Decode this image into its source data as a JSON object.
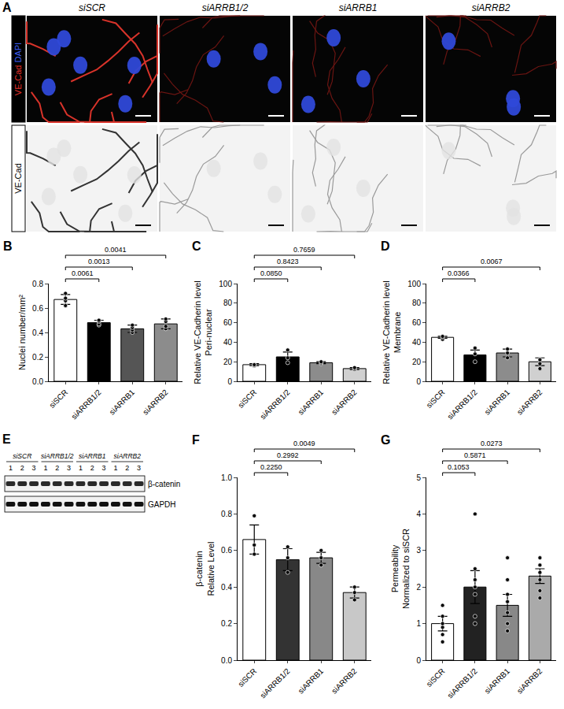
{
  "panel_A": {
    "letter": "A",
    "columns": [
      "siSCR",
      "siARRB1/2",
      "siARRB1",
      "siARRB2"
    ],
    "rows": [
      {
        "label": [
          {
            "text": "VE-Cad",
            "color": "#e8322b"
          },
          {
            "text": "DAPI",
            "color": "#3d5ef0"
          }
        ]
      },
      {
        "label": [
          {
            "text": "VE-Cad",
            "color": "#000000"
          }
        ]
      }
    ]
  },
  "panel_E": {
    "letter": "E",
    "groups": [
      "siSCR",
      "siARRB1/2",
      "siARRB1",
      "siARRB2"
    ],
    "lanes": [
      "1",
      "2",
      "3"
    ],
    "blots": [
      "β-catenin",
      "GAPDH"
    ]
  },
  "chart_data": [
    {
      "panel": "B",
      "type": "bar",
      "y_label": [
        "Nuclei number/mm²"
      ],
      "categories": [
        "siSCR",
        "siARRB1/2",
        "siARRB1",
        "siARRB2"
      ],
      "values": [
        0.67,
        0.48,
        0.43,
        0.47
      ],
      "errors": [
        0.04,
        0.02,
        0.03,
        0.04
      ],
      "points": [
        [
          0.62,
          0.66,
          0.68,
          0.72
        ],
        [
          0.46,
          0.47,
          0.49,
          0.5
        ],
        [
          0.4,
          0.42,
          0.44,
          0.46
        ],
        [
          0.43,
          0.45,
          0.49,
          0.51
        ]
      ],
      "colors": [
        "#ffffff",
        "#000000",
        "#555555",
        "#8c8c8c"
      ],
      "ylim": [
        0,
        0.8
      ],
      "yticks": [
        {
          "value": 0,
          "label": "0.0"
        },
        0.2,
        0.4,
        0.6,
        0.8
      ],
      "comparisons": [
        {
          "from": "siSCR",
          "to": "siARRB1/2",
          "p": "0.0061"
        },
        {
          "from": "siSCR",
          "to": "siARRB1",
          "p": "0.0013"
        },
        {
          "from": "siSCR",
          "to": "siARRB2",
          "p": "0.0041"
        }
      ],
      "grid": false
    },
    {
      "panel": "C",
      "type": "bar",
      "y_label": [
        "Relative VE-Cadherin level",
        "Peri-nuclear"
      ],
      "categories": [
        "siSCR",
        "siARRB1/2",
        "siARRB1",
        "siARRB2"
      ],
      "values": [
        17,
        25,
        19,
        13
      ],
      "errors": [
        1,
        5,
        1,
        1
      ],
      "points": [
        [
          16,
          17,
          17
        ],
        [
          19,
          24,
          32
        ],
        [
          18,
          19,
          20
        ],
        [
          12,
          13,
          14
        ]
      ],
      "colors": [
        "#ffffff",
        "#000000",
        "#8c8c8c",
        "#d0d0d0"
      ],
      "ylim": [
        0,
        100
      ],
      "yticks": [
        0,
        20,
        40,
        60,
        80,
        100
      ],
      "comparisons": [
        {
          "from": "siSCR",
          "to": "siARRB1/2",
          "p": "0.0850"
        },
        {
          "from": "siSCR",
          "to": "siARRB1",
          "p": "0.8423"
        },
        {
          "from": "siSCR",
          "to": "siARRB2",
          "p": "0.7659"
        }
      ],
      "grid": false
    },
    {
      "panel": "D",
      "type": "bar",
      "y_label": [
        "Relative VE-Cadherin level",
        "Membrane"
      ],
      "categories": [
        "siSCR",
        "siARRB1/2",
        "siARRB1",
        "siARRB2"
      ],
      "values": [
        45,
        27,
        29,
        20
      ],
      "errors": [
        1,
        5,
        4,
        4
      ],
      "points": [
        [
          43,
          45,
          46
        ],
        [
          20,
          28,
          34
        ],
        [
          24,
          29,
          33
        ],
        [
          13,
          18,
          22
        ]
      ],
      "colors": [
        "#ffffff",
        "#000000",
        "#8c8c8c",
        "#d0d0d0"
      ],
      "ylim": [
        0,
        100
      ],
      "yticks": [
        0,
        20,
        40,
        60,
        80,
        100
      ],
      "comparisons": [
        {
          "from": "siSCR",
          "to": "siARRB1/2",
          "p": "0.0366"
        },
        {
          "from": "siSCR",
          "to": "siARRB2",
          "p": "0.0067"
        }
      ],
      "grid": false
    },
    {
      "panel": "F",
      "type": "bar",
      "y_label": [
        "β-catenin",
        "Relative Level"
      ],
      "categories": [
        "siSCR",
        "siARRB1/2",
        "siARRB1",
        "siARRB2"
      ],
      "values": [
        0.66,
        0.55,
        0.56,
        0.37
      ],
      "errors": [
        0.08,
        0.06,
        0.03,
        0.03
      ],
      "points": [
        [
          0.58,
          0.63,
          0.79
        ],
        [
          0.48,
          0.56,
          0.62
        ],
        [
          0.52,
          0.56,
          0.6
        ],
        [
          0.33,
          0.37,
          0.4
        ]
      ],
      "colors": [
        "#ffffff",
        "#333333",
        "#888888",
        "#c8c8c8"
      ],
      "ylim": [
        0,
        1
      ],
      "yticks": [
        {
          "value": 0,
          "label": "0.0"
        },
        0.2,
        0.4,
        0.6,
        0.8,
        {
          "value": 1,
          "label": "1.0"
        }
      ],
      "comparisons": [
        {
          "from": "siSCR",
          "to": "siARRB1/2",
          "p": "0.2250"
        },
        {
          "from": "siSCR",
          "to": "siARRB1",
          "p": "0.2992"
        },
        {
          "from": "siSCR",
          "to": "siARRB2",
          "p": "0.0049"
        }
      ],
      "grid": false
    },
    {
      "panel": "G",
      "type": "bar",
      "y_label": [
        "Permeability",
        "Normalized to siSCR"
      ],
      "categories": [
        "siSCR",
        "siARRB1/2",
        "siARRB1",
        "siARRB2"
      ],
      "values": [
        1.0,
        2.0,
        1.5,
        2.3
      ],
      "errors": [
        0.2,
        0.45,
        0.3,
        0.2
      ],
      "points": [
        [
          0.5,
          0.7,
          0.9,
          1.0,
          1.2,
          1.5
        ],
        [
          1.0,
          1.2,
          1.8,
          2.0,
          2.2,
          2.5,
          4.0
        ],
        [
          0.8,
          1.0,
          1.3,
          1.6,
          1.8,
          2.2,
          2.8
        ],
        [
          1.7,
          1.9,
          2.2,
          2.4,
          2.6,
          2.8
        ]
      ],
      "colors": [
        "#ffffff",
        "#222222",
        "#888888",
        "#aaaaaa"
      ],
      "ylim": [
        0,
        5
      ],
      "yticks": [
        0,
        1,
        2,
        3,
        4,
        5
      ],
      "comparisons": [
        {
          "from": "siSCR",
          "to": "siARRB1/2",
          "p": "0.1053"
        },
        {
          "from": "siSCR",
          "to": "siARRB1",
          "p": "0.5871"
        },
        {
          "from": "siSCR",
          "to": "siARRB2",
          "p": "0.0273"
        }
      ],
      "grid": false
    }
  ]
}
